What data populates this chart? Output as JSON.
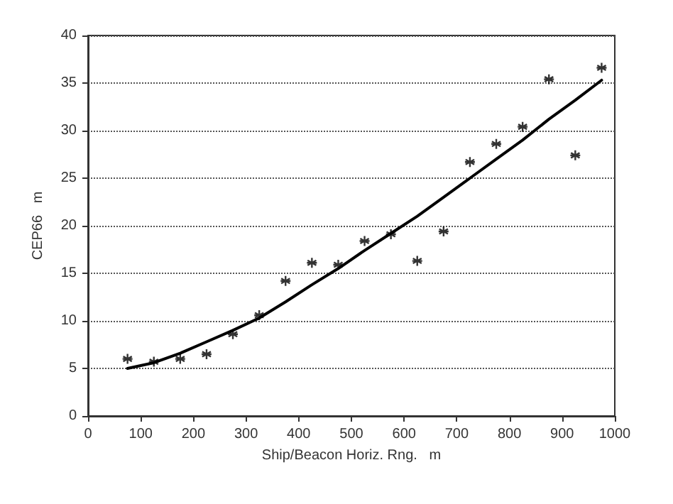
{
  "chart_data": {
    "type": "scatter",
    "xlabel": "Ship/Beacon Horiz. Rng.   m",
    "ylabel": "CEP66   m",
    "xlim": [
      0,
      1000
    ],
    "xticks": [
      0,
      100,
      200,
      300,
      400,
      500,
      600,
      700,
      800,
      900,
      1000
    ],
    "ylim": [
      0,
      40
    ],
    "yticks": [
      0,
      5,
      10,
      15,
      20,
      25,
      30,
      35,
      40
    ],
    "grid": "y",
    "marker": "cross",
    "x": [
      75,
      125,
      175,
      225,
      275,
      325,
      375,
      425,
      475,
      525,
      575,
      625,
      675,
      725,
      775,
      825,
      875,
      925,
      975
    ],
    "series": [
      {
        "color": "#000000",
        "values": [
          6.0,
          5.7,
          6.0,
          6.5,
          8.6,
          10.6,
          14.2,
          16.1,
          15.9,
          18.4,
          19.1,
          16.3,
          19.4,
          26.7,
          28.6,
          30.4,
          35.4,
          27.4,
          36.6
        ]
      },
      {
        "type": "line",
        "color": "#000000",
        "marker": "none",
        "line_style": "solid",
        "values": [
          5.0,
          5.6,
          6.6,
          7.8,
          9.0,
          10.3,
          12.0,
          13.8,
          15.5,
          17.4,
          19.2,
          21.0,
          23.0,
          25.0,
          27.0,
          29.0,
          31.2,
          33.2,
          35.3
        ]
      }
    ]
  }
}
